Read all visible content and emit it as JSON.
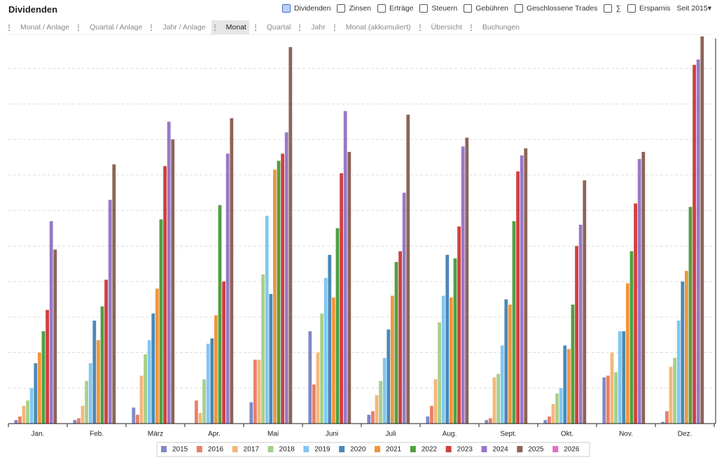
{
  "header": {
    "title": "Dividenden",
    "toolbar": [
      "Dividenden",
      "Zinsen",
      "Erträge",
      "Steuern",
      "Gebühren",
      "Geschlossene Trades",
      "∑",
      "Ersparnis"
    ],
    "range": "Seit 2015"
  },
  "tabs": [
    "Monat / Anlage",
    "Quartal / Anlage",
    "Jahr / Anlage",
    "Monat",
    "Quartal",
    "Jahr",
    "Monat (akkumuliert)",
    "Übersicht",
    "Buchungen"
  ],
  "active_tab": "Monat",
  "chart_data": {
    "type": "bar",
    "categories": [
      "Jan.",
      "Feb.",
      "März",
      "Apr.",
      "Mai",
      "Juni",
      "Juli",
      "Aug.",
      "Sept.",
      "Okt.",
      "Nov.",
      "Dez."
    ],
    "ylim": [
      0,
      11
    ],
    "gridlines": [
      1,
      2,
      3,
      4,
      5,
      6,
      7,
      8,
      9,
      10
    ],
    "grid": true,
    "legend": "bottom",
    "series": [
      {
        "name": "2015",
        "color": "#8088c8",
        "values": [
          0.1,
          0.1,
          0.45,
          0,
          0.6,
          2.6,
          0.25,
          0.2,
          0.1,
          0.1,
          1.3,
          0.05
        ]
      },
      {
        "name": "2016",
        "color": "#e8806a",
        "values": [
          0.2,
          0.15,
          0.25,
          0.65,
          1.8,
          1.1,
          0.35,
          0.5,
          0.15,
          0.2,
          1.35,
          0.35
        ]
      },
      {
        "name": "2017",
        "color": "#f4b87a",
        "values": [
          0.5,
          0.5,
          1.35,
          0.3,
          1.8,
          2.0,
          0.8,
          1.25,
          1.3,
          0.55,
          2.0,
          1.6
        ]
      },
      {
        "name": "2018",
        "color": "#a8d08c",
        "values": [
          0.65,
          1.2,
          1.95,
          1.25,
          4.2,
          3.1,
          1.2,
          2.85,
          1.4,
          0.85,
          1.45,
          1.85
        ]
      },
      {
        "name": "2019",
        "color": "#80c8f0",
        "values": [
          1.0,
          1.7,
          2.35,
          2.25,
          5.85,
          4.1,
          1.85,
          3.6,
          2.2,
          1.0,
          2.6,
          2.9
        ]
      },
      {
        "name": "2020",
        "color": "#4a88b8",
        "values": [
          1.7,
          2.9,
          3.1,
          2.4,
          3.65,
          4.75,
          2.65,
          4.75,
          3.5,
          2.2,
          2.6,
          4.0
        ]
      },
      {
        "name": "2021",
        "color": "#f0963c",
        "values": [
          2.0,
          2.35,
          3.8,
          3.05,
          7.15,
          3.55,
          3.6,
          3.55,
          3.35,
          2.1,
          3.95,
          4.3
        ]
      },
      {
        "name": "2022",
        "color": "#50a040",
        "values": [
          2.6,
          3.3,
          5.75,
          6.15,
          7.4,
          5.5,
          4.55,
          4.65,
          5.7,
          3.35,
          4.85,
          6.1
        ]
      },
      {
        "name": "2023",
        "color": "#d04040",
        "values": [
          3.2,
          4.05,
          7.25,
          4.0,
          7.6,
          7.05,
          4.85,
          5.55,
          7.1,
          5.0,
          6.2,
          10.1
        ]
      },
      {
        "name": "2024",
        "color": "#9878c8",
        "values": [
          5.7,
          6.3,
          8.5,
          7.6,
          8.2,
          8.8,
          6.5,
          7.8,
          7.55,
          5.6,
          7.45,
          10.25
        ]
      },
      {
        "name": "2025",
        "color": "#8c6458",
        "values": [
          4.9,
          7.3,
          8.0,
          8.6,
          10.6,
          7.65,
          8.7,
          8.05,
          7.75,
          6.85,
          7.65,
          10.9
        ]
      },
      {
        "name": "2026",
        "color": "#e070c8",
        "values": [
          null,
          null,
          null,
          null,
          null,
          null,
          null,
          null,
          null,
          null,
          null,
          null
        ]
      }
    ]
  }
}
